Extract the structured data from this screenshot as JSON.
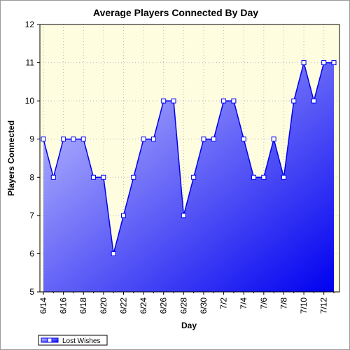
{
  "chart_data": {
    "type": "area",
    "title": "Average Players Connected By Day",
    "xlabel": "Day",
    "ylabel": "Players Connected",
    "ylim": [
      5,
      12
    ],
    "yticks": [
      5,
      6,
      7,
      8,
      9,
      10,
      11,
      12
    ],
    "grid": true,
    "legend_position": "bottom-left",
    "x": [
      "6/14",
      "6/15",
      "6/16",
      "6/17",
      "6/18",
      "6/19",
      "6/20",
      "6/21",
      "6/22",
      "6/23",
      "6/24",
      "6/25",
      "6/26",
      "6/27",
      "6/28",
      "6/29",
      "6/30",
      "7/1",
      "7/2",
      "7/3",
      "7/4",
      "7/5",
      "7/6",
      "7/7",
      "7/8",
      "7/9",
      "7/10",
      "7/11",
      "7/12",
      "7/13"
    ],
    "x_tick_labels": [
      "6/14",
      "6/16",
      "6/18",
      "6/20",
      "6/22",
      "6/24",
      "6/26",
      "6/28",
      "6/30",
      "7/2",
      "7/4",
      "7/6",
      "7/8",
      "7/10",
      "7/12"
    ],
    "series": [
      {
        "name": "Lost Wishes",
        "values": [
          9,
          8,
          9,
          9,
          9,
          8,
          8,
          6,
          7,
          8,
          9,
          9,
          10,
          10,
          7,
          8,
          9,
          9,
          10,
          10,
          9,
          8,
          8,
          9,
          8,
          10,
          11,
          10,
          11,
          11
        ],
        "line_color": "#0000ee",
        "fill_light": "#c8c8ff",
        "fill_dark": "#0000f0"
      }
    ],
    "plot_background": "#fffde0"
  }
}
